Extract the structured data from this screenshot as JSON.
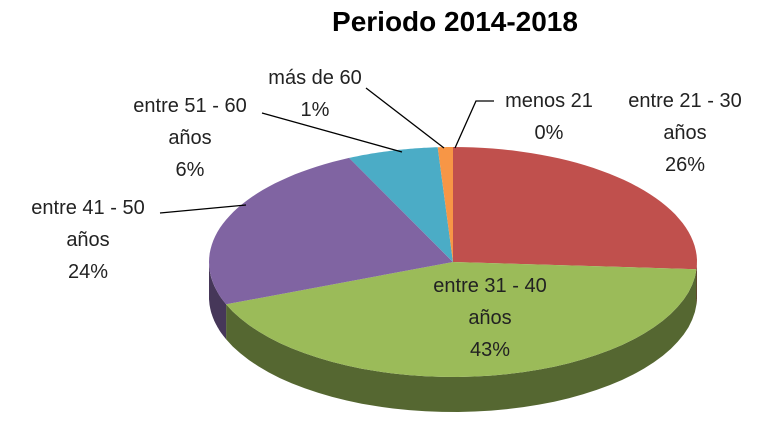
{
  "chart_data": {
    "type": "pie",
    "title": "Periodo 2014-2018",
    "categories": [
      "menos 21",
      "entre 21 - 30 años",
      "entre 31 - 40 años",
      "entre 41 - 50 años",
      "entre 51 - 60 años",
      "más de 60"
    ],
    "values": [
      0,
      26,
      43,
      24,
      6,
      1
    ],
    "value_labels": [
      "0%",
      "26%",
      "43%",
      "24%",
      "6%",
      "1%"
    ],
    "colors": [
      "#4F81BD",
      "#C0504D",
      "#9BBB59",
      "#8064A2",
      "#4BACC6",
      "#F79646"
    ]
  }
}
